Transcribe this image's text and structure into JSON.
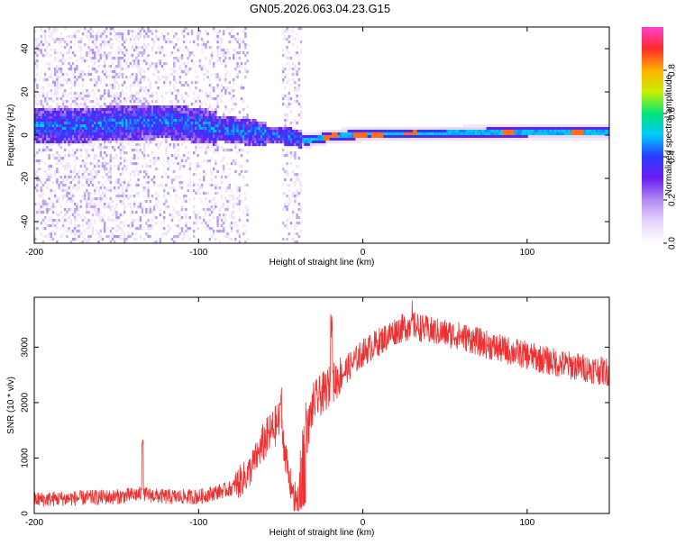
{
  "title": "GN05.2026.063.04.23.G15",
  "chart_data": [
    {
      "type": "heatmap",
      "xlabel": "Height of straight line (km)",
      "ylabel": "Frequency (Hz)",
      "xlim": [
        -200,
        150
      ],
      "ylim": [
        -50,
        50
      ],
      "x_ticks": [
        -200,
        -100,
        0,
        100
      ],
      "y_ticks": [
        -40,
        -20,
        0,
        20,
        40
      ],
      "colorbar": {
        "label": "Normalized spectral amplitude",
        "range": [
          0,
          1
        ],
        "ticks": [
          0.0,
          0.2,
          0.4,
          0.6,
          0.8
        ],
        "tick_labels": [
          "0.0",
          "0.2",
          "0.4",
          "0.6",
          "0.8"
        ],
        "colormap": [
          "#ffffff",
          "#e6d5fb",
          "#b08cf2",
          "#6a1cf0",
          "#2a3aff",
          "#00c8ff",
          "#00e676",
          "#c8f000",
          "#ffb000",
          "#ff2a2a",
          "#ff40d0"
        ]
      },
      "ridge": {
        "x": [
          -180,
          -150,
          -120,
          -100,
          -80,
          -60,
          -45,
          -35,
          -20,
          0,
          50,
          100,
          150
        ],
        "y": [
          5,
          6,
          7,
          5,
          3,
          1,
          0,
          -2,
          0,
          1,
          1.5,
          2,
          2
        ]
      },
      "gaps_x": [
        [
          -70,
          -50
        ],
        [
          -38,
          150
        ]
      ],
      "peaks_x": [
        -20,
        -2,
        8,
        28,
        88,
        130
      ]
    },
    {
      "type": "line",
      "xlabel": "Height of straight line (km)",
      "ylabel": "SNR (10 * v/v)",
      "xlim": [
        -200,
        150
      ],
      "ylim": [
        0,
        3900
      ],
      "x_ticks": [
        -200,
        -100,
        0,
        100
      ],
      "y_ticks": [
        0,
        1000,
        2000,
        3000
      ],
      "color": "#ee3030",
      "envelope": {
        "x": [
          -200,
          -150,
          -135,
          -120,
          -100,
          -80,
          -70,
          -60,
          -50,
          -45,
          -40,
          -35,
          -30,
          -20,
          -10,
          0,
          10,
          20,
          30,
          40,
          60,
          80,
          100,
          120,
          150
        ],
        "y": [
          250,
          300,
          350,
          300,
          300,
          450,
          700,
          1300,
          1700,
          600,
          200,
          1300,
          2000,
          2300,
          2600,
          2900,
          3100,
          3300,
          3400,
          3300,
          3200,
          3000,
          2850,
          2700,
          2550
        ]
      },
      "spikes": [
        {
          "x": -134,
          "y": 1450
        },
        {
          "x": -50,
          "y": 2300
        },
        {
          "x": -19,
          "y": 3650
        },
        {
          "x": 30,
          "y": 3850
        }
      ]
    }
  ]
}
